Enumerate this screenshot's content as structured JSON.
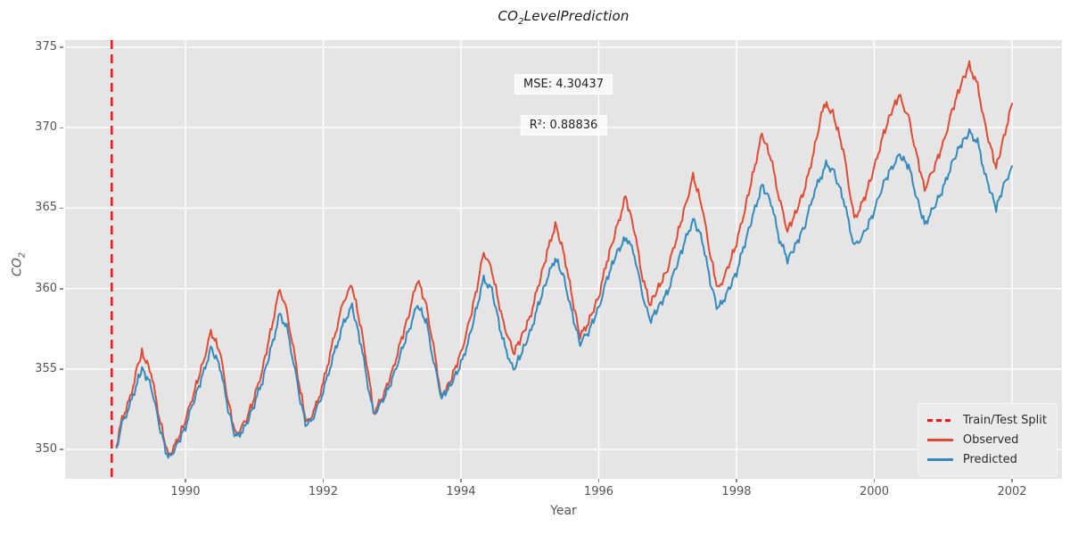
{
  "title": {
    "prefix": "CO",
    "sub": "2",
    "rest": "LevelPrediction"
  },
  "axes": {
    "xlabel": "Year",
    "ylabel_prefix": "CO",
    "ylabel_sub": "2",
    "x_ticks": [
      1990,
      1992,
      1994,
      1996,
      1998,
      2000,
      2002
    ],
    "y_ticks": [
      350,
      355,
      360,
      365,
      370,
      375
    ]
  },
  "annotations": {
    "mse": "MSE: 4.30437",
    "r2": "R²: 0.88836"
  },
  "legend": {
    "items": [
      {
        "label": "Train/Test Split",
        "color": "#ff1111",
        "dashed": true
      },
      {
        "label": "Observed",
        "color": "#e24a33",
        "dashed": false
      },
      {
        "label": "Predicted",
        "color": "#348abd",
        "dashed": false
      }
    ]
  },
  "colors": {
    "plot_bg": "#e5e5e5",
    "grid": "#ffffff",
    "tick_text": "#555555",
    "split_line": "#ff1111",
    "observed": "#e24a33",
    "predicted": "#348abd"
  },
  "chart_data": {
    "type": "line",
    "title": "CO2 Level Prediction",
    "xlabel": "Year",
    "ylabel": "CO2",
    "xlim": [
      1988.253,
      2002.725
    ],
    "ylim": [
      348.17,
      375.44
    ],
    "grid": true,
    "legend_position": "lower right",
    "split_line_x": 1988.93,
    "series": [
      {
        "name": "Observed",
        "color": "#e24a33",
        "points": [
          [
            1989.0,
            350.2
          ],
          [
            1989.08,
            351.9
          ],
          [
            1989.2,
            353.2
          ],
          [
            1989.3,
            355.1
          ],
          [
            1989.37,
            356.0
          ],
          [
            1989.5,
            354.8
          ],
          [
            1989.62,
            352.0
          ],
          [
            1989.75,
            349.6
          ],
          [
            1989.87,
            350.4
          ],
          [
            1990.0,
            351.8
          ],
          [
            1990.12,
            353.5
          ],
          [
            1990.25,
            355.3
          ],
          [
            1990.37,
            357.3
          ],
          [
            1990.5,
            356.1
          ],
          [
            1990.62,
            353.0
          ],
          [
            1990.73,
            350.9
          ],
          [
            1990.87,
            351.7
          ],
          [
            1991.0,
            353.2
          ],
          [
            1991.12,
            355.0
          ],
          [
            1991.25,
            357.6
          ],
          [
            1991.37,
            360.0
          ],
          [
            1991.47,
            358.6
          ],
          [
            1991.57,
            356.2
          ],
          [
            1991.67,
            353.6
          ],
          [
            1991.76,
            351.6
          ],
          [
            1991.88,
            352.5
          ],
          [
            1992.0,
            354.1
          ],
          [
            1992.12,
            356.3
          ],
          [
            1992.3,
            359.3
          ],
          [
            1992.42,
            360.2
          ],
          [
            1992.55,
            357.5
          ],
          [
            1992.65,
            354.9
          ],
          [
            1992.73,
            352.3
          ],
          [
            1992.85,
            353.1
          ],
          [
            1993.0,
            354.8
          ],
          [
            1993.12,
            356.6
          ],
          [
            1993.25,
            358.5
          ],
          [
            1993.37,
            360.6
          ],
          [
            1993.5,
            358.9
          ],
          [
            1993.6,
            356.4
          ],
          [
            1993.72,
            353.2
          ],
          [
            1993.85,
            354.3
          ],
          [
            1994.0,
            356.0
          ],
          [
            1994.12,
            357.9
          ],
          [
            1994.25,
            360.4
          ],
          [
            1994.33,
            362.3
          ],
          [
            1994.45,
            361.1
          ],
          [
            1994.6,
            358.1
          ],
          [
            1994.76,
            356.0
          ],
          [
            1994.87,
            356.9
          ],
          [
            1995.0,
            358.2
          ],
          [
            1995.12,
            360.1
          ],
          [
            1995.25,
            362.2
          ],
          [
            1995.37,
            364.0
          ],
          [
            1995.5,
            362.1
          ],
          [
            1995.62,
            359.3
          ],
          [
            1995.73,
            357.0
          ],
          [
            1995.85,
            357.9
          ],
          [
            1996.0,
            359.5
          ],
          [
            1996.12,
            361.7
          ],
          [
            1996.25,
            363.6
          ],
          [
            1996.39,
            365.7
          ],
          [
            1996.52,
            363.6
          ],
          [
            1996.62,
            361.0
          ],
          [
            1996.74,
            359.0
          ],
          [
            1996.85,
            359.9
          ],
          [
            1997.0,
            361.2
          ],
          [
            1997.12,
            363.0
          ],
          [
            1997.25,
            365.0
          ],
          [
            1997.37,
            367.0
          ],
          [
            1997.5,
            365.1
          ],
          [
            1997.62,
            362.1
          ],
          [
            1997.73,
            359.9
          ],
          [
            1997.85,
            361.0
          ],
          [
            1998.0,
            362.8
          ],
          [
            1998.12,
            364.9
          ],
          [
            1998.25,
            367.3
          ],
          [
            1998.37,
            369.6
          ],
          [
            1998.5,
            368.1
          ],
          [
            1998.62,
            365.6
          ],
          [
            1998.74,
            363.6
          ],
          [
            1998.85,
            364.6
          ],
          [
            1999.0,
            366.3
          ],
          [
            1999.12,
            368.5
          ],
          [
            1999.27,
            371.5
          ],
          [
            1999.4,
            370.9
          ],
          [
            1999.55,
            368.6
          ],
          [
            1999.71,
            364.3
          ],
          [
            1999.85,
            365.5
          ],
          [
            2000.0,
            367.5
          ],
          [
            2000.12,
            369.4
          ],
          [
            2000.25,
            371.0
          ],
          [
            2000.36,
            372.0
          ],
          [
            2000.5,
            370.6
          ],
          [
            2000.62,
            368.2
          ],
          [
            2000.73,
            366.2
          ],
          [
            2000.85,
            367.3
          ],
          [
            2001.0,
            369.0
          ],
          [
            2001.12,
            370.9
          ],
          [
            2001.25,
            372.6
          ],
          [
            2001.38,
            373.9
          ],
          [
            2001.5,
            372.6
          ],
          [
            2001.62,
            369.9
          ],
          [
            2001.77,
            367.5
          ],
          [
            2001.88,
            369.4
          ],
          [
            2002.0,
            371.5
          ]
        ]
      },
      {
        "name": "Predicted",
        "color": "#348abd",
        "points": [
          [
            1989.0,
            350.1
          ],
          [
            1989.08,
            351.6
          ],
          [
            1989.2,
            352.8
          ],
          [
            1989.3,
            354.2
          ],
          [
            1989.37,
            355.0
          ],
          [
            1989.5,
            354.0
          ],
          [
            1989.62,
            351.5
          ],
          [
            1989.75,
            349.4
          ],
          [
            1989.87,
            350.2
          ],
          [
            1990.0,
            351.4
          ],
          [
            1990.12,
            353.0
          ],
          [
            1990.25,
            354.6
          ],
          [
            1990.37,
            356.3
          ],
          [
            1990.5,
            355.2
          ],
          [
            1990.62,
            352.5
          ],
          [
            1990.73,
            350.7
          ],
          [
            1990.87,
            351.4
          ],
          [
            1991.0,
            352.8
          ],
          [
            1991.12,
            354.3
          ],
          [
            1991.25,
            356.4
          ],
          [
            1991.37,
            358.4
          ],
          [
            1991.47,
            357.6
          ],
          [
            1991.57,
            355.4
          ],
          [
            1991.67,
            353.0
          ],
          [
            1991.76,
            351.4
          ],
          [
            1991.88,
            352.2
          ],
          [
            1992.0,
            353.6
          ],
          [
            1992.12,
            355.4
          ],
          [
            1992.3,
            357.9
          ],
          [
            1992.42,
            358.9
          ],
          [
            1992.55,
            356.5
          ],
          [
            1992.65,
            354.0
          ],
          [
            1992.73,
            352.2
          ],
          [
            1992.85,
            352.9
          ],
          [
            1993.0,
            354.3
          ],
          [
            1993.12,
            355.9
          ],
          [
            1993.25,
            357.5
          ],
          [
            1993.37,
            359.0
          ],
          [
            1993.5,
            357.9
          ],
          [
            1993.6,
            355.5
          ],
          [
            1993.72,
            353.2
          ],
          [
            1993.85,
            354.0
          ],
          [
            1994.0,
            355.3
          ],
          [
            1994.12,
            356.9
          ],
          [
            1994.25,
            359.2
          ],
          [
            1994.33,
            360.6
          ],
          [
            1994.45,
            359.9
          ],
          [
            1994.6,
            356.9
          ],
          [
            1994.76,
            354.9
          ],
          [
            1994.87,
            355.9
          ],
          [
            1995.0,
            357.2
          ],
          [
            1995.12,
            358.9
          ],
          [
            1995.25,
            360.6
          ],
          [
            1995.37,
            361.9
          ],
          [
            1995.5,
            360.6
          ],
          [
            1995.62,
            358.3
          ],
          [
            1995.73,
            356.6
          ],
          [
            1995.85,
            357.3
          ],
          [
            1996.0,
            358.8
          ],
          [
            1996.12,
            360.6
          ],
          [
            1996.25,
            362.1
          ],
          [
            1996.4,
            363.2
          ],
          [
            1996.52,
            362.1
          ],
          [
            1996.62,
            359.9
          ],
          [
            1996.74,
            358.0
          ],
          [
            1996.85,
            358.7
          ],
          [
            1997.0,
            359.8
          ],
          [
            1997.12,
            361.3
          ],
          [
            1997.25,
            362.9
          ],
          [
            1997.37,
            364.3
          ],
          [
            1997.5,
            363.1
          ],
          [
            1997.62,
            360.4
          ],
          [
            1997.73,
            358.7
          ],
          [
            1997.85,
            359.6
          ],
          [
            1998.0,
            361.0
          ],
          [
            1998.12,
            362.8
          ],
          [
            1998.25,
            364.7
          ],
          [
            1998.37,
            366.4
          ],
          [
            1998.5,
            365.4
          ],
          [
            1998.62,
            363.1
          ],
          [
            1998.74,
            361.8
          ],
          [
            1998.85,
            362.6
          ],
          [
            1999.0,
            364.0
          ],
          [
            1999.12,
            365.9
          ],
          [
            1999.3,
            367.7
          ],
          [
            1999.4,
            367.4
          ],
          [
            1999.55,
            365.6
          ],
          [
            1999.71,
            362.6
          ],
          [
            1999.85,
            363.4
          ],
          [
            2000.0,
            364.8
          ],
          [
            2000.12,
            366.4
          ],
          [
            2000.25,
            367.5
          ],
          [
            2000.37,
            368.3
          ],
          [
            2000.5,
            367.6
          ],
          [
            2000.62,
            365.6
          ],
          [
            2000.73,
            364.0
          ],
          [
            2000.85,
            364.9
          ],
          [
            2001.0,
            366.2
          ],
          [
            2001.12,
            367.7
          ],
          [
            2001.25,
            368.9
          ],
          [
            2001.38,
            369.7
          ],
          [
            2001.5,
            369.1
          ],
          [
            2001.62,
            366.9
          ],
          [
            2001.77,
            365.0
          ],
          [
            2001.88,
            366.4
          ],
          [
            2002.0,
            367.6
          ]
        ]
      }
    ]
  }
}
